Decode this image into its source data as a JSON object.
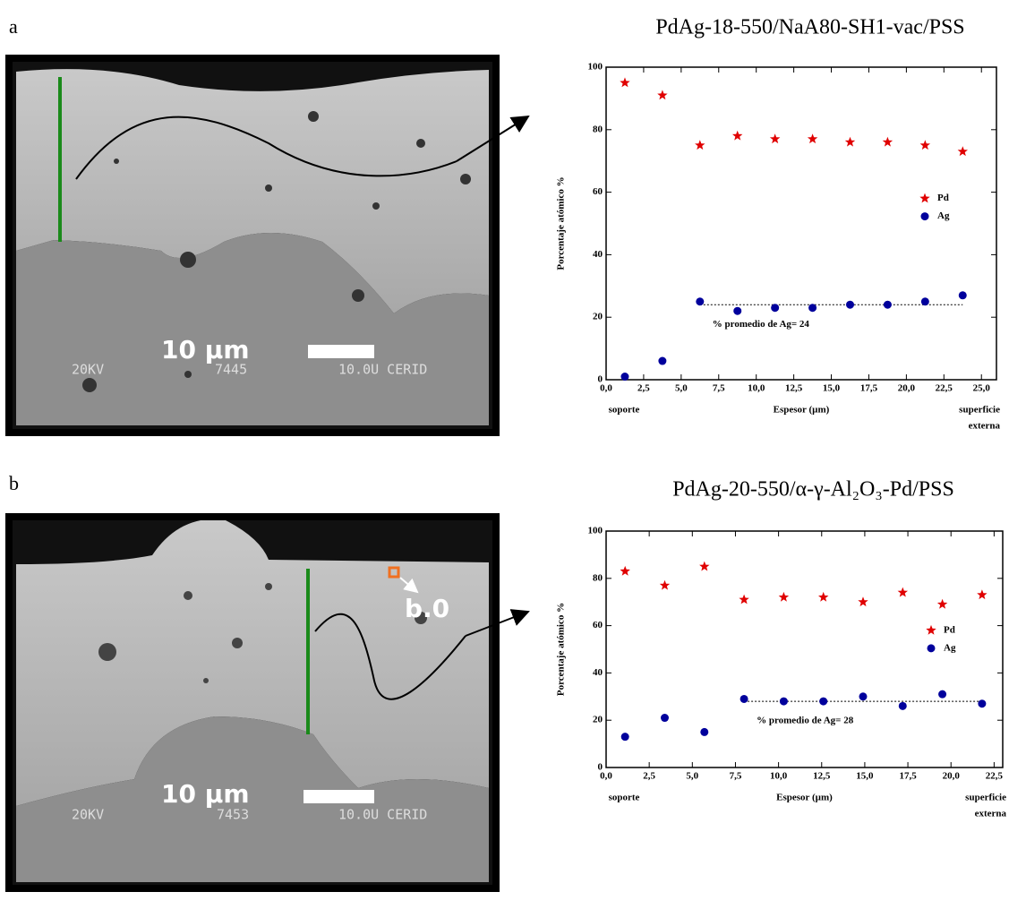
{
  "panels": [
    {
      "label": "a",
      "scale_bar": "10 µm",
      "caption": [
        "20KV",
        "7445",
        "10.0U CERID"
      ]
    },
    {
      "label": "b",
      "scale_bar": "10 µm",
      "caption": [
        "20KV",
        "7453",
        "10.0U CERID"
      ],
      "marker": "b.0"
    }
  ],
  "chart_data": [
    {
      "type": "scatter",
      "title": "PdAg-18-550/NaA80-SH1-vac/PSS",
      "x_label": "Espesor (µm)",
      "y_label": "Porcentaje atómico %",
      "x_left_label": "soporte",
      "x_right_label": [
        "superficie",
        "externa"
      ],
      "xlim": [
        0,
        26
      ],
      "ylim": [
        0,
        100
      ],
      "xticks": [
        {
          "value": 0,
          "label": "0,0"
        },
        {
          "value": 2.5,
          "label": "2,5"
        },
        {
          "value": 5,
          "label": "5,0"
        },
        {
          "value": 7.5,
          "label": "7,5"
        },
        {
          "value": 10,
          "label": "10,0"
        },
        {
          "value": 12.5,
          "label": "12,5"
        },
        {
          "value": 15,
          "label": "15,0"
        },
        {
          "value": 17.5,
          "label": "17,5"
        },
        {
          "value": 20,
          "label": "20,0"
        },
        {
          "value": 22.5,
          "label": "22,5"
        },
        {
          "value": 25,
          "label": "25,0"
        }
      ],
      "yticks": [
        0,
        20,
        40,
        60,
        80,
        100
      ],
      "legend": "right",
      "series": [
        {
          "name": "Pd",
          "color": "#e00000",
          "marker": "star",
          "x": [
            1.25,
            3.75,
            6.25,
            8.75,
            11.25,
            13.75,
            16.25,
            18.75,
            21.25,
            23.75
          ],
          "values": [
            95,
            91,
            75,
            78,
            77,
            77,
            76,
            76,
            75,
            73
          ]
        },
        {
          "name": "Ag",
          "color": "#00009c",
          "marker": "circle",
          "x": [
            1.25,
            3.75,
            6.25,
            8.75,
            11.25,
            13.75,
            16.25,
            18.75,
            21.25,
            23.75
          ],
          "values": [
            1,
            6,
            25,
            22,
            23,
            23,
            24,
            24,
            25,
            27
          ]
        }
      ],
      "annotation": "% promedio de Ag= 24",
      "average_line": {
        "value": 24,
        "x": [
          6.25,
          23.75
        ]
      }
    },
    {
      "type": "scatter",
      "title": "PdAg-20-550/α-γ-Al₂O₃-Pd/PSS",
      "x_label": "Espesor (µm)",
      "y_label": "Porcentaje atómico %",
      "x_left_label": "soporte",
      "x_right_label": [
        "superficie",
        "externa"
      ],
      "xlim": [
        0,
        23
      ],
      "ylim": [
        0,
        100
      ],
      "xticks": [
        {
          "value": 0,
          "label": "0,0"
        },
        {
          "value": 2.5,
          "label": "2,5"
        },
        {
          "value": 5,
          "label": "5,0"
        },
        {
          "value": 7.5,
          "label": "7,5"
        },
        {
          "value": 10,
          "label": "10,0"
        },
        {
          "value": 12.5,
          "label": "12,5"
        },
        {
          "value": 15,
          "label": "15,0"
        },
        {
          "value": 17.5,
          "label": "17,5"
        },
        {
          "value": 20,
          "label": "20,0"
        },
        {
          "value": 22.5,
          "label": "22,5"
        }
      ],
      "yticks": [
        0,
        20,
        40,
        60,
        80,
        100
      ],
      "legend": "right",
      "series": [
        {
          "name": "Pd",
          "color": "#e00000",
          "marker": "star",
          "x": [
            1.1,
            3.4,
            5.7,
            8.0,
            10.3,
            12.6,
            14.9,
            17.2,
            19.5,
            21.8
          ],
          "values": [
            83,
            77,
            85,
            71,
            72,
            72,
            70,
            74,
            69,
            73
          ]
        },
        {
          "name": "Ag",
          "color": "#00009c",
          "marker": "circle",
          "x": [
            1.1,
            3.4,
            5.7,
            8.0,
            10.3,
            12.6,
            14.9,
            17.2,
            19.5,
            21.8
          ],
          "values": [
            13,
            21,
            15,
            29,
            28,
            28,
            30,
            26,
            31,
            27
          ]
        }
      ],
      "annotation": "% promedio de Ag= 28",
      "average_line": {
        "value": 28,
        "x": [
          8.0,
          21.8
        ]
      }
    }
  ]
}
